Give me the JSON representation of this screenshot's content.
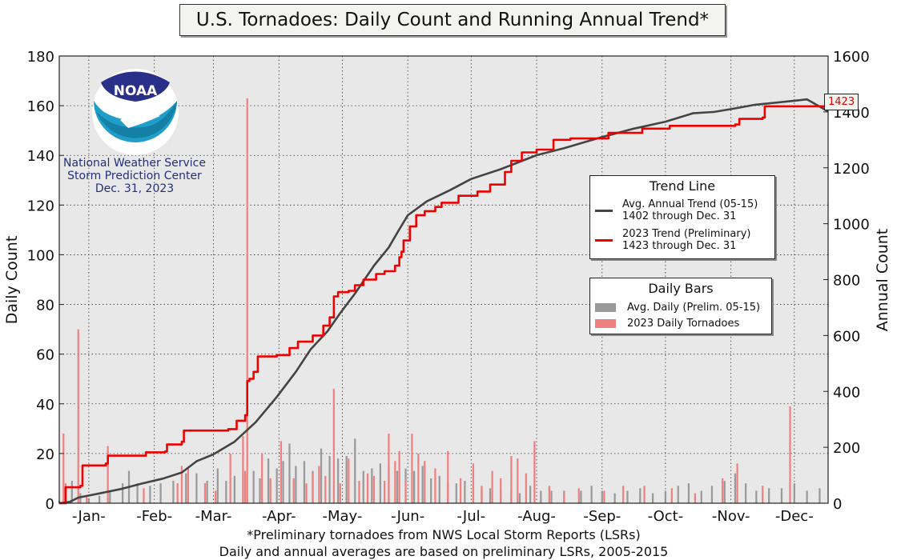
{
  "title": "U.S. Tornadoes: Daily Count and Running Annual Trend*",
  "logo": {
    "badge_text": "NOAA",
    "org_line1": "National Weather Service",
    "org_line2": "Storm Prediction Center",
    "date_line": "Dec. 31, 2023"
  },
  "trend_legend": {
    "title": "Trend Line",
    "avg_line1": "Avg. Annual Trend (05-15)",
    "avg_line2": "1402 through Dec. 31",
    "cur_line1": "2023 Trend (Preliminary)",
    "cur_line2": "1423 through Dec. 31"
  },
  "bars_legend": {
    "title": "Daily Bars",
    "avg_label": "Avg. Daily (Prelim. 05-15)",
    "cur_label": "2023 Daily Tornadoes"
  },
  "end_label": "1423",
  "footnote1": "*Preliminary tornadoes from NWS Local Storm Reports (LSRs)",
  "footnote2": "Daily and annual averages are based on preliminary LSRs, 2005-2015",
  "colors": {
    "current": "#ee0000",
    "average": "#444444",
    "current_bar": "#f08080",
    "average_bar": "#999999",
    "plot_bg": "#e8e8e8"
  },
  "chart_data": {
    "type": "line",
    "title": "U.S. Tornadoes: Daily Count and Running Annual Trend*",
    "ylabel": "Daily Count",
    "y2label": "Annual Count",
    "ylim": [
      0,
      180
    ],
    "y2lim": [
      0,
      1600
    ],
    "yticks": [
      0,
      20,
      40,
      60,
      80,
      100,
      120,
      140,
      160,
      180
    ],
    "y2ticks": [
      0,
      200,
      400,
      600,
      800,
      1000,
      1200,
      1400,
      1600
    ],
    "xlim": [
      1,
      365
    ],
    "month_labels": [
      "-Jan-",
      "-Feb-",
      "-Mar-",
      "-Apr-",
      "-May-",
      "-Jun-",
      "-Jul-",
      "-Aug-",
      "-Sep-",
      "-Oct-",
      "-Nov-",
      "-Dec-"
    ],
    "month_label_days": [
      15,
      46,
      74,
      105,
      135,
      166,
      196,
      227,
      258,
      288,
      319,
      349
    ],
    "grid": true,
    "series": [
      {
        "name": "Avg. Annual Trend (05-15)",
        "axis": "right",
        "points": [
          [
            1,
            0
          ],
          [
            6,
            5
          ],
          [
            10,
            20
          ],
          [
            20,
            35
          ],
          [
            31,
            52
          ],
          [
            40,
            70
          ],
          [
            50,
            88
          ],
          [
            59,
            110
          ],
          [
            66,
            150
          ],
          [
            74,
            175
          ],
          [
            84,
            220
          ],
          [
            94,
            290
          ],
          [
            104,
            380
          ],
          [
            113,
            470
          ],
          [
            120,
            550
          ],
          [
            128,
            615
          ],
          [
            134,
            680
          ],
          [
            141,
            750
          ],
          [
            150,
            850
          ],
          [
            157,
            915
          ],
          [
            162,
            980
          ],
          [
            166,
            1030
          ],
          [
            175,
            1080
          ],
          [
            186,
            1120
          ],
          [
            196,
            1160
          ],
          [
            210,
            1195
          ],
          [
            227,
            1245
          ],
          [
            240,
            1270
          ],
          [
            258,
            1310
          ],
          [
            273,
            1340
          ],
          [
            288,
            1365
          ],
          [
            301,
            1395
          ],
          [
            311,
            1400
          ],
          [
            319,
            1410
          ],
          [
            330,
            1425
          ],
          [
            349,
            1440
          ],
          [
            355,
            1445
          ],
          [
            365,
            1402
          ]
        ]
      },
      {
        "name": "2023 Trend (Preliminary)",
        "axis": "right",
        "points": [
          [
            1,
            0
          ],
          [
            4,
            57
          ],
          [
            11,
            62
          ],
          [
            12,
            135
          ],
          [
            23,
            142
          ],
          [
            24,
            170
          ],
          [
            41,
            170
          ],
          [
            42,
            182
          ],
          [
            51,
            185
          ],
          [
            52,
            210
          ],
          [
            59,
            220
          ],
          [
            60,
            260
          ],
          [
            81,
            265
          ],
          [
            85,
            295
          ],
          [
            89,
            315
          ],
          [
            90,
            437
          ],
          [
            91,
            445
          ],
          [
            93,
            470
          ],
          [
            95,
            525
          ],
          [
            104,
            530
          ],
          [
            110,
            555
          ],
          [
            114,
            578
          ],
          [
            121,
            600
          ],
          [
            126,
            635
          ],
          [
            129,
            665
          ],
          [
            131,
            740
          ],
          [
            133,
            755
          ],
          [
            138,
            760
          ],
          [
            141,
            780
          ],
          [
            145,
            800
          ],
          [
            151,
            820
          ],
          [
            155,
            830
          ],
          [
            160,
            850
          ],
          [
            162,
            880
          ],
          [
            163,
            900
          ],
          [
            164,
            940
          ],
          [
            167,
            990
          ],
          [
            170,
            1030
          ],
          [
            174,
            1045
          ],
          [
            179,
            1060
          ],
          [
            182,
            1075
          ],
          [
            190,
            1100
          ],
          [
            199,
            1115
          ],
          [
            205,
            1140
          ],
          [
            212,
            1185
          ],
          [
            215,
            1225
          ],
          [
            220,
            1255
          ],
          [
            227,
            1265
          ],
          [
            235,
            1300
          ],
          [
            243,
            1305
          ],
          [
            261,
            1325
          ],
          [
            277,
            1340
          ],
          [
            290,
            1350
          ],
          [
            321,
            1355
          ],
          [
            323,
            1375
          ],
          [
            334,
            1380
          ],
          [
            335,
            1420
          ],
          [
            365,
            1423
          ]
        ]
      }
    ],
    "daily_bars": {
      "current_2023": [
        [
          3,
          28
        ],
        [
          4,
          8
        ],
        [
          10,
          70
        ],
        [
          14,
          3
        ],
        [
          24,
          23
        ],
        [
          41,
          6
        ],
        [
          57,
          8
        ],
        [
          59,
          15
        ],
        [
          62,
          14
        ],
        [
          70,
          8
        ],
        [
          75,
          5
        ],
        [
          82,
          20
        ],
        [
          88,
          27
        ],
        [
          89,
          13
        ],
        [
          90,
          163
        ],
        [
          97,
          20
        ],
        [
          101,
          10
        ],
        [
          106,
          25
        ],
        [
          112,
          10
        ],
        [
          118,
          8
        ],
        [
          121,
          12
        ],
        [
          124,
          15
        ],
        [
          127,
          11
        ],
        [
          131,
          46
        ],
        [
          134,
          8
        ],
        [
          138,
          18
        ],
        [
          143,
          9
        ],
        [
          147,
          12
        ],
        [
          150,
          11
        ],
        [
          155,
          9
        ],
        [
          157,
          28
        ],
        [
          160,
          17
        ],
        [
          162,
          21
        ],
        [
          165,
          9
        ],
        [
          168,
          28
        ],
        [
          171,
          20
        ],
        [
          174,
          17
        ],
        [
          179,
          14
        ],
        [
          185,
          21
        ],
        [
          191,
          10
        ],
        [
          197,
          16
        ],
        [
          201,
          7
        ],
        [
          206,
          13
        ],
        [
          210,
          10
        ],
        [
          215,
          19
        ],
        [
          218,
          18
        ],
        [
          222,
          12
        ],
        [
          226,
          25
        ],
        [
          233,
          7
        ],
        [
          240,
          4
        ],
        [
          247,
          6
        ],
        [
          259,
          5
        ],
        [
          268,
          7
        ],
        [
          278,
          7
        ],
        [
          291,
          6
        ],
        [
          302,
          4
        ],
        [
          315,
          10
        ],
        [
          322,
          16
        ],
        [
          334,
          7
        ],
        [
          347,
          39
        ]
      ],
      "average": [
        [
          1,
          1
        ],
        [
          4,
          3
        ],
        [
          7,
          9
        ],
        [
          11,
          4
        ],
        [
          15,
          2
        ],
        [
          20,
          3
        ],
        [
          25,
          5
        ],
        [
          31,
          8
        ],
        [
          34,
          13
        ],
        [
          38,
          8
        ],
        [
          44,
          7
        ],
        [
          49,
          8
        ],
        [
          55,
          9
        ],
        [
          61,
          12
        ],
        [
          66,
          12
        ],
        [
          71,
          9
        ],
        [
          76,
          14
        ],
        [
          80,
          9
        ],
        [
          84,
          11
        ],
        [
          88,
          12
        ],
        [
          93,
          13
        ],
        [
          96,
          10
        ],
        [
          100,
          18
        ],
        [
          104,
          14
        ],
        [
          107,
          17
        ],
        [
          110,
          24
        ],
        [
          113,
          15
        ],
        [
          117,
          17
        ],
        [
          121,
          13
        ],
        [
          125,
          22
        ],
        [
          129,
          19
        ],
        [
          133,
          18
        ],
        [
          137,
          19
        ],
        [
          141,
          26
        ],
        [
          145,
          13
        ],
        [
          149,
          14
        ],
        [
          153,
          16
        ],
        [
          157,
          15
        ],
        [
          161,
          13
        ],
        [
          165,
          14
        ],
        [
          169,
          13
        ],
        [
          173,
          15
        ],
        [
          177,
          10
        ],
        [
          181,
          11
        ],
        [
          185,
          8
        ],
        [
          189,
          8
        ],
        [
          193,
          9
        ],
        [
          197,
          7
        ],
        [
          201,
          6
        ],
        [
          205,
          6
        ],
        [
          210,
          5
        ],
        [
          215,
          5
        ],
        [
          219,
          4
        ],
        [
          224,
          7
        ],
        [
          229,
          5
        ],
        [
          234,
          5
        ],
        [
          240,
          5
        ],
        [
          248,
          5
        ],
        [
          253,
          7
        ],
        [
          258,
          5
        ],
        [
          264,
          4
        ],
        [
          270,
          5
        ],
        [
          276,
          6
        ],
        [
          282,
          4
        ],
        [
          288,
          5
        ],
        [
          294,
          7
        ],
        [
          299,
          8
        ],
        [
          305,
          5
        ],
        [
          310,
          7
        ],
        [
          316,
          9
        ],
        [
          321,
          12
        ],
        [
          326,
          8
        ],
        [
          331,
          5
        ],
        [
          337,
          6
        ],
        [
          343,
          6
        ],
        [
          349,
          8
        ],
        [
          355,
          5
        ],
        [
          361,
          6
        ]
      ]
    }
  }
}
